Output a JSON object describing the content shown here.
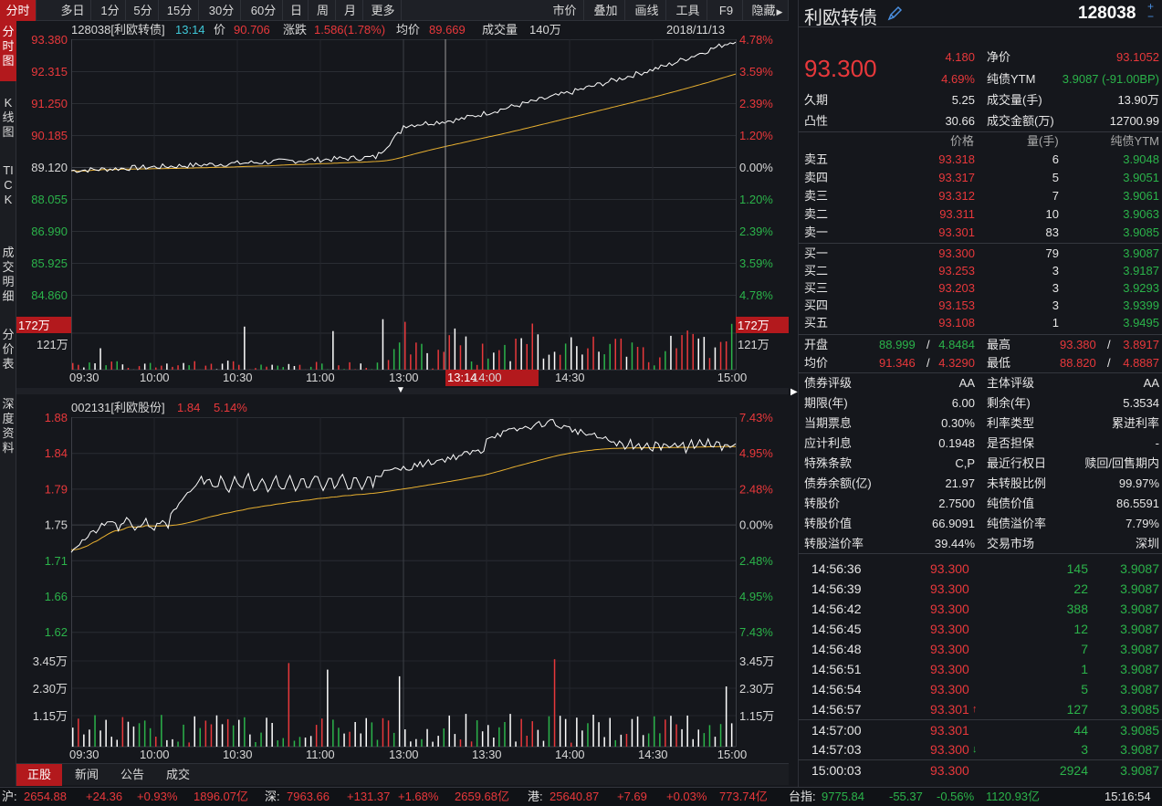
{
  "toolbar": {
    "left": [
      "分时",
      "多日",
      "1分",
      "5分",
      "15分",
      "30分",
      "60分",
      "日",
      "周",
      "月",
      "更多"
    ],
    "right": [
      "市价",
      "叠加",
      "画线",
      "工具",
      "F9",
      "隐藏"
    ]
  },
  "left_tabs": [
    "分时图",
    "K线图",
    "TICK",
    "成交明细",
    "分价表",
    "深度资料"
  ],
  "chart1": {
    "header": {
      "code": "128038[利欧转债]",
      "time": "13:14",
      "price_label": "价",
      "price": "90.706",
      "change_label": "涨跌",
      "change": "1.586(1.78%)",
      "avg_label": "均价",
      "avg": "89.669",
      "vol_label": "成交量",
      "vol": "140万",
      "date": "2018/11/13"
    },
    "y_left": [
      "93.380",
      "92.315",
      "91.250",
      "90.185",
      "89.120",
      "88.055",
      "86.990",
      "85.925",
      "84.860"
    ],
    "y_right": [
      "4.78%",
      "3.59%",
      "2.39%",
      "1.20%",
      "0.00%",
      "1.20%",
      "2.39%",
      "3.59%",
      "4.78%"
    ],
    "vol_left": [
      "172万",
      "121万"
    ],
    "vol_right": [
      "172万",
      "121万"
    ],
    "x_labels": [
      "09:30",
      "10:00",
      "10:30",
      "11:00",
      "13:00",
      "13:14",
      "14:00",
      "14:30",
      "15:00"
    ]
  },
  "chart2": {
    "header": {
      "code": "002131[利欧股份]",
      "price": "1.84",
      "pct": "5.14%"
    },
    "y_left": [
      "1.88",
      "1.84",
      "1.79",
      "1.75",
      "1.71",
      "1.66",
      "1.62"
    ],
    "y_right": [
      "7.43%",
      "4.95%",
      "2.48%",
      "0.00%",
      "2.48%",
      "4.95%",
      "7.43%"
    ],
    "vol_left": [
      "3.45万",
      "2.30万",
      "1.15万"
    ],
    "vol_right": [
      "3.45万",
      "2.30万",
      "1.15万"
    ],
    "x_labels": [
      "09:30",
      "10:00",
      "10:30",
      "11:00",
      "13:00",
      "13:30",
      "14:00",
      "14:30",
      "15:00"
    ]
  },
  "bottom_tabs": [
    "正股",
    "新闻",
    "公告",
    "成交"
  ],
  "status": {
    "sh_label": "沪:",
    "sh_price": "2654.88",
    "sh_chg": "+24.36",
    "sh_pct": "+0.93%",
    "sh_amt": "1896.07亿",
    "sz_label": "深:",
    "sz_price": "7963.66",
    "sz_chg": "+131.37",
    "sz_pct": "+1.68%",
    "sz_amt": "2659.68亿",
    "hk_label": "港:",
    "hk_price": "25640.87",
    "hk_chg": "+7.69",
    "hk_pct": "+0.03%",
    "hk_amt": "773.74亿",
    "tw_label": "台指:",
    "tw_price": "9775.84",
    "tw_chg": "-55.37",
    "tw_pct": "-0.56%",
    "tw_amt": "1120.93亿",
    "clock": "15:16:54"
  },
  "panel": {
    "name": "利欧转债",
    "code": "128038",
    "price": "93.300",
    "chg": "4.180",
    "pct": "4.69%",
    "net_label": "净价",
    "net": "93.1052",
    "ytm_label": "纯债YTM",
    "ytm": "3.9087 (-91.00BP)",
    "duration_label": "久期",
    "duration": "5.25",
    "volume_label": "成交量(手)",
    "volume": "13.90万",
    "convex_label": "凸性",
    "convex": "30.66",
    "amount_label": "成交金额(万)",
    "amount": "12700.99",
    "ob_headers": [
      "价格",
      "量(手)",
      "纯债YTM"
    ],
    "asks": [
      {
        "label": "卖五",
        "price": "93.318",
        "qty": "6",
        "ytm": "3.9048"
      },
      {
        "label": "卖四",
        "price": "93.317",
        "qty": "5",
        "ytm": "3.9051"
      },
      {
        "label": "卖三",
        "price": "93.312",
        "qty": "7",
        "ytm": "3.9061"
      },
      {
        "label": "卖二",
        "price": "93.311",
        "qty": "10",
        "ytm": "3.9063"
      },
      {
        "label": "卖一",
        "price": "93.301",
        "qty": "83",
        "ytm": "3.9085"
      }
    ],
    "bids": [
      {
        "label": "买一",
        "price": "93.300",
        "qty": "79",
        "ytm": "3.9087"
      },
      {
        "label": "买二",
        "price": "93.253",
        "qty": "3",
        "ytm": "3.9187"
      },
      {
        "label": "买三",
        "price": "93.203",
        "qty": "3",
        "ytm": "3.9293"
      },
      {
        "label": "买四",
        "price": "93.153",
        "qty": "3",
        "ytm": "3.9399"
      },
      {
        "label": "买五",
        "price": "93.108",
        "qty": "1",
        "ytm": "3.9495"
      }
    ],
    "open_label": "开盘",
    "open": "88.999",
    "open_ytm": "4.8484",
    "high_label": "最高",
    "high": "93.380",
    "high_ytm": "3.8917",
    "avg_label": "均价",
    "avg": "91.346",
    "avg_ytm": "4.3290",
    "low_label": "最低",
    "low": "88.820",
    "low_ytm": "4.8887",
    "info": [
      [
        "债券评级",
        "AA",
        "主体评级",
        "AA"
      ],
      [
        "期限(年)",
        "6.00",
        "剩余(年)",
        "5.3534"
      ],
      [
        "当期票息",
        "0.30%",
        "利率类型",
        "累进利率"
      ],
      [
        "应计利息",
        "0.1948",
        "是否担保",
        "-"
      ],
      [
        "特殊条款",
        "C,P",
        "最近行权日",
        "赎回/回售期内"
      ],
      [
        "债券余额(亿)",
        "21.97",
        "未转股比例",
        "99.97%"
      ],
      [
        "转股价",
        "2.7500",
        "纯债价值",
        "86.5591"
      ],
      [
        "转股价值",
        "66.9091",
        "纯债溢价率",
        "7.79%"
      ],
      [
        "转股溢价率",
        "39.44%",
        "交易市场",
        "深圳"
      ]
    ],
    "ticks": [
      {
        "time": "14:56:36",
        "price": "93.300",
        "vol": "145",
        "ytm": "3.9087",
        "arrow": ""
      },
      {
        "time": "14:56:39",
        "price": "93.300",
        "vol": "22",
        "ytm": "3.9087",
        "arrow": ""
      },
      {
        "time": "14:56:42",
        "price": "93.300",
        "vol": "388",
        "ytm": "3.9087",
        "arrow": ""
      },
      {
        "time": "14:56:45",
        "price": "93.300",
        "vol": "12",
        "ytm": "3.9087",
        "arrow": ""
      },
      {
        "time": "14:56:48",
        "price": "93.300",
        "vol": "7",
        "ytm": "3.9087",
        "arrow": ""
      },
      {
        "time": "14:56:51",
        "price": "93.300",
        "vol": "1",
        "ytm": "3.9087",
        "arrow": ""
      },
      {
        "time": "14:56:54",
        "price": "93.300",
        "vol": "5",
        "ytm": "3.9087",
        "arrow": ""
      },
      {
        "time": "14:56:57",
        "price": "93.301",
        "vol": "127",
        "ytm": "3.9085",
        "arrow": "up"
      },
      {
        "time": "14:57:00",
        "price": "93.301",
        "vol": "44",
        "ytm": "3.9085",
        "arrow": ""
      },
      {
        "time": "14:57:03",
        "price": "93.300",
        "vol": "3",
        "ytm": "3.9087",
        "arrow": "down"
      },
      {
        "time": "15:00:03",
        "price": "93.300",
        "vol": "2924",
        "ytm": "3.9087",
        "arrow": ""
      }
    ]
  },
  "colors": {
    "up": "#e8383b",
    "down": "#2bb34a",
    "accent": "#b3191d",
    "avg_line": "#e8b030",
    "price_line": "#ffffff"
  }
}
